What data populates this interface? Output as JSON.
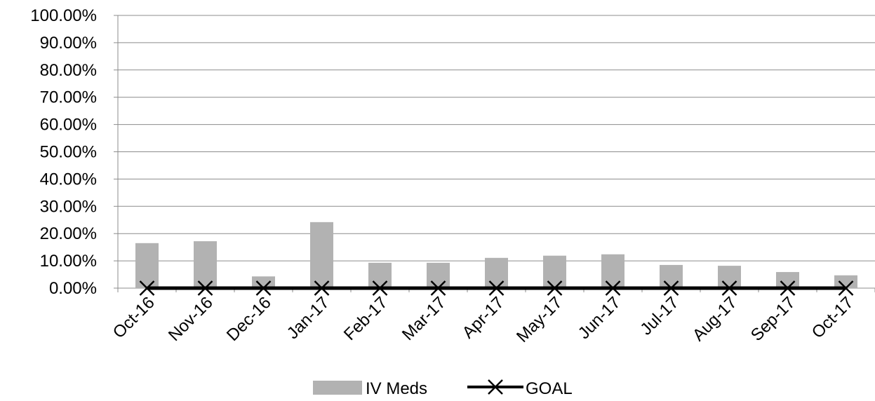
{
  "chart_data": {
    "type": "bar",
    "categories": [
      "Oct-16",
      "Nov-16",
      "Dec-16",
      "Jan-17",
      "Feb-17",
      "Mar-17",
      "Apr-17",
      "May-17",
      "Jun-17",
      "Jul-17",
      "Aug-17",
      "Sep-17",
      "Oct-17"
    ],
    "series": [
      {
        "name": "IV Meds",
        "type": "bar",
        "color": "#b2b2b2",
        "values": [
          0.165,
          0.172,
          0.043,
          0.242,
          0.093,
          0.093,
          0.111,
          0.119,
          0.124,
          0.085,
          0.082,
          0.059,
          0.047
        ]
      },
      {
        "name": "GOAL",
        "type": "line",
        "marker": "x",
        "color": "#000000",
        "values": [
          0,
          0,
          0,
          0,
          0,
          0,
          0,
          0,
          0,
          0,
          0,
          0,
          0
        ]
      }
    ],
    "ylim": [
      0,
      1
    ],
    "yticks": [
      "0.00%",
      "10.00%",
      "20.00%",
      "30.00%",
      "40.00%",
      "50.00%",
      "60.00%",
      "70.00%",
      "80.00%",
      "90.00%",
      "100.00%"
    ],
    "title": "",
    "xlabel": "",
    "ylabel": "",
    "grid": true,
    "legend": "bottom"
  }
}
